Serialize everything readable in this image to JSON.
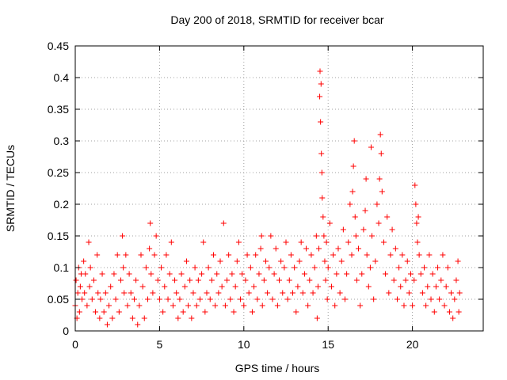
{
  "chart_data": {
    "type": "scatter",
    "title": "Day 200 of 2018, SRMTID for receiver bcar",
    "xlabel": "GPS time / hours",
    "ylabel": "SRMTID / TECUs",
    "xlim": [
      0,
      24.2
    ],
    "ylim": [
      0,
      0.45
    ],
    "x_ticks": [
      0,
      5,
      10,
      15,
      20
    ],
    "x_tick_labels": [
      "0",
      "5",
      "10",
      "15",
      "20"
    ],
    "y_ticks": [
      0,
      0.05,
      0.1,
      0.15,
      0.2,
      0.25,
      0.3,
      0.35,
      0.4,
      0.45
    ],
    "y_tick_labels": [
      "0",
      "0.05",
      "0.1",
      "0.15",
      "0.2",
      "0.25",
      "0.3",
      "0.35",
      "0.4",
      "0.45"
    ],
    "grid": true,
    "marker": "+",
    "series": [
      {
        "name": "SRMTID",
        "color": "#ff0000",
        "points": [
          [
            0.0,
            0.04
          ],
          [
            0.05,
            0.08
          ],
          [
            0.1,
            0.02
          ],
          [
            0.15,
            0.06
          ],
          [
            0.2,
            0.1
          ],
          [
            0.25,
            0.03
          ],
          [
            0.3,
            0.07
          ],
          [
            0.35,
            0.09
          ],
          [
            0.4,
            0.05
          ],
          [
            0.5,
            0.11
          ],
          [
            0.55,
            0.06
          ],
          [
            0.6,
            0.09
          ],
          [
            0.7,
            0.04
          ],
          [
            0.8,
            0.14
          ],
          [
            0.85,
            0.07
          ],
          [
            0.9,
            0.1
          ],
          [
            1.0,
            0.05
          ],
          [
            1.1,
            0.08
          ],
          [
            1.2,
            0.03
          ],
          [
            1.3,
            0.12
          ],
          [
            1.35,
            0.06
          ],
          [
            1.45,
            0.02
          ],
          [
            1.5,
            0.05
          ],
          [
            1.6,
            0.09
          ],
          [
            1.7,
            0.03
          ],
          [
            1.8,
            0.06
          ],
          [
            1.9,
            0.01
          ],
          [
            2.0,
            0.04
          ],
          [
            2.1,
            0.07
          ],
          [
            2.2,
            0.02
          ],
          [
            2.3,
            0.09
          ],
          [
            2.4,
            0.05
          ],
          [
            2.5,
            0.12
          ],
          [
            2.6,
            0.03
          ],
          [
            2.7,
            0.08
          ],
          [
            2.8,
            0.15
          ],
          [
            2.85,
            0.1
          ],
          [
            2.9,
            0.06
          ],
          [
            3.0,
            0.12
          ],
          [
            3.1,
            0.04
          ],
          [
            3.2,
            0.09
          ],
          [
            3.3,
            0.06
          ],
          [
            3.4,
            0.02
          ],
          [
            3.5,
            0.05
          ],
          [
            3.6,
            0.08
          ],
          [
            3.7,
            0.01
          ],
          [
            3.8,
            0.04
          ],
          [
            3.9,
            0.12
          ],
          [
            4.0,
            0.07
          ],
          [
            4.1,
            0.02
          ],
          [
            4.2,
            0.1
          ],
          [
            4.3,
            0.05
          ],
          [
            4.4,
            0.13
          ],
          [
            4.45,
            0.17
          ],
          [
            4.5,
            0.09
          ],
          [
            4.6,
            0.06
          ],
          [
            4.7,
            0.12
          ],
          [
            4.8,
            0.15
          ],
          [
            4.9,
            0.08
          ],
          [
            5.0,
            0.05
          ],
          [
            5.1,
            0.1
          ],
          [
            5.2,
            0.03
          ],
          [
            5.3,
            0.07
          ],
          [
            5.4,
            0.12
          ],
          [
            5.5,
            0.05
          ],
          [
            5.6,
            0.09
          ],
          [
            5.7,
            0.14
          ],
          [
            5.8,
            0.04
          ],
          [
            5.9,
            0.08
          ],
          [
            6.0,
            0.06
          ],
          [
            6.1,
            0.02
          ],
          [
            6.2,
            0.05
          ],
          [
            6.3,
            0.09
          ],
          [
            6.4,
            0.03
          ],
          [
            6.5,
            0.07
          ],
          [
            6.6,
            0.11
          ],
          [
            6.7,
            0.04
          ],
          [
            6.8,
            0.08
          ],
          [
            6.9,
            0.02
          ],
          [
            7.0,
            0.06
          ],
          [
            7.1,
            0.1
          ],
          [
            7.2,
            0.04
          ],
          [
            7.3,
            0.08
          ],
          [
            7.4,
            0.05
          ],
          [
            7.5,
            0.09
          ],
          [
            7.6,
            0.14
          ],
          [
            7.7,
            0.03
          ],
          [
            7.8,
            0.06
          ],
          [
            7.9,
            0.1
          ],
          [
            8.0,
            0.05
          ],
          [
            8.1,
            0.08
          ],
          [
            8.2,
            0.12
          ],
          [
            8.3,
            0.04
          ],
          [
            8.4,
            0.09
          ],
          [
            8.5,
            0.06
          ],
          [
            8.6,
            0.11
          ],
          [
            8.7,
            0.07
          ],
          [
            8.8,
            0.17
          ],
          [
            8.9,
            0.04
          ],
          [
            9.0,
            0.08
          ],
          [
            9.1,
            0.12
          ],
          [
            9.2,
            0.05
          ],
          [
            9.3,
            0.09
          ],
          [
            9.4,
            0.03
          ],
          [
            9.5,
            0.07
          ],
          [
            9.6,
            0.11
          ],
          [
            9.7,
            0.14
          ],
          [
            9.8,
            0.05
          ],
          [
            9.9,
            0.09
          ],
          [
            10.0,
            0.04
          ],
          [
            10.1,
            0.08
          ],
          [
            10.2,
            0.12
          ],
          [
            10.3,
            0.06
          ],
          [
            10.4,
            0.1
          ],
          [
            10.5,
            0.03
          ],
          [
            10.6,
            0.07
          ],
          [
            10.7,
            0.12
          ],
          [
            10.8,
            0.05
          ],
          [
            10.9,
            0.09
          ],
          [
            11.0,
            0.13
          ],
          [
            11.05,
            0.15
          ],
          [
            11.1,
            0.04
          ],
          [
            11.2,
            0.08
          ],
          [
            11.3,
            0.11
          ],
          [
            11.4,
            0.06
          ],
          [
            11.5,
            0.1
          ],
          [
            11.6,
            0.15
          ],
          [
            11.7,
            0.05
          ],
          [
            11.8,
            0.09
          ],
          [
            11.9,
            0.13
          ],
          [
            12.0,
            0.04
          ],
          [
            12.1,
            0.08
          ],
          [
            12.2,
            0.11
          ],
          [
            12.3,
            0.06
          ],
          [
            12.4,
            0.1
          ],
          [
            12.5,
            0.14
          ],
          [
            12.6,
            0.05
          ],
          [
            12.7,
            0.08
          ],
          [
            12.8,
            0.12
          ],
          [
            12.9,
            0.06
          ],
          [
            13.0,
            0.1
          ],
          [
            13.1,
            0.03
          ],
          [
            13.2,
            0.07
          ],
          [
            13.3,
            0.11
          ],
          [
            13.4,
            0.14
          ],
          [
            13.5,
            0.06
          ],
          [
            13.6,
            0.09
          ],
          [
            13.7,
            0.13
          ],
          [
            13.8,
            0.04
          ],
          [
            13.9,
            0.08
          ],
          [
            14.0,
            0.12
          ],
          [
            14.1,
            0.06
          ],
          [
            14.2,
            0.1
          ],
          [
            14.3,
            0.15
          ],
          [
            14.35,
            0.02
          ],
          [
            14.4,
            0.07
          ],
          [
            14.45,
            0.13
          ],
          [
            14.5,
            0.37
          ],
          [
            14.52,
            0.41
          ],
          [
            14.55,
            0.33
          ],
          [
            14.58,
            0.39
          ],
          [
            14.6,
            0.28
          ],
          [
            14.63,
            0.25
          ],
          [
            14.65,
            0.21
          ],
          [
            14.7,
            0.18
          ],
          [
            14.75,
            0.15
          ],
          [
            14.8,
            0.11
          ],
          [
            14.85,
            0.08
          ],
          [
            14.9,
            0.14
          ],
          [
            14.95,
            0.05
          ],
          [
            15.0,
            0.1
          ],
          [
            15.1,
            0.17
          ],
          [
            15.2,
            0.07
          ],
          [
            15.3,
            0.12
          ],
          [
            15.4,
            0.04
          ],
          [
            15.5,
            0.09
          ],
          [
            15.6,
            0.13
          ],
          [
            15.7,
            0.06
          ],
          [
            15.8,
            0.11
          ],
          [
            15.9,
            0.16
          ],
          [
            16.0,
            0.05
          ],
          [
            16.1,
            0.09
          ],
          [
            16.2,
            0.14
          ],
          [
            16.3,
            0.2
          ],
          [
            16.4,
            0.12
          ],
          [
            16.45,
            0.22
          ],
          [
            16.5,
            0.26
          ],
          [
            16.55,
            0.3
          ],
          [
            16.6,
            0.18
          ],
          [
            16.65,
            0.15
          ],
          [
            16.7,
            0.08
          ],
          [
            16.8,
            0.13
          ],
          [
            16.9,
            0.04
          ],
          [
            17.0,
            0.09
          ],
          [
            17.1,
            0.16
          ],
          [
            17.2,
            0.19
          ],
          [
            17.25,
            0.24
          ],
          [
            17.3,
            0.12
          ],
          [
            17.4,
            0.07
          ],
          [
            17.5,
            0.1
          ],
          [
            17.55,
            0.29
          ],
          [
            17.6,
            0.15
          ],
          [
            17.7,
            0.05
          ],
          [
            17.8,
            0.11
          ],
          [
            17.9,
            0.2
          ],
          [
            18.0,
            0.17
          ],
          [
            18.05,
            0.24
          ],
          [
            18.1,
            0.31
          ],
          [
            18.15,
            0.28
          ],
          [
            18.2,
            0.22
          ],
          [
            18.3,
            0.14
          ],
          [
            18.4,
            0.09
          ],
          [
            18.5,
            0.18
          ],
          [
            18.6,
            0.06
          ],
          [
            18.7,
            0.12
          ],
          [
            18.8,
            0.16
          ],
          [
            18.9,
            0.08
          ],
          [
            19.0,
            0.13
          ],
          [
            19.1,
            0.05
          ],
          [
            19.2,
            0.1
          ],
          [
            19.3,
            0.07
          ],
          [
            19.4,
            0.12
          ],
          [
            19.5,
            0.04
          ],
          [
            19.6,
            0.08
          ],
          [
            19.7,
            0.11
          ],
          [
            19.8,
            0.06
          ],
          [
            19.9,
            0.09
          ],
          [
            20.0,
            0.04
          ],
          [
            20.1,
            0.08
          ],
          [
            20.15,
            0.23
          ],
          [
            20.2,
            0.2
          ],
          [
            20.25,
            0.17
          ],
          [
            20.3,
            0.14
          ],
          [
            20.35,
            0.18
          ],
          [
            20.4,
            0.12
          ],
          [
            20.5,
            0.09
          ],
          [
            20.6,
            0.06
          ],
          [
            20.7,
            0.1
          ],
          [
            20.8,
            0.04
          ],
          [
            20.9,
            0.07
          ],
          [
            21.0,
            0.12
          ],
          [
            21.1,
            0.05
          ],
          [
            21.2,
            0.09
          ],
          [
            21.3,
            0.03
          ],
          [
            21.4,
            0.07
          ],
          [
            21.5,
            0.1
          ],
          [
            21.6,
            0.05
          ],
          [
            21.7,
            0.08
          ],
          [
            21.8,
            0.12
          ],
          [
            21.9,
            0.04
          ],
          [
            22.0,
            0.07
          ],
          [
            22.1,
            0.1
          ],
          [
            22.2,
            0.03
          ],
          [
            22.3,
            0.06
          ],
          [
            22.4,
            0.02
          ],
          [
            22.5,
            0.05
          ],
          [
            22.6,
            0.08
          ],
          [
            22.7,
            0.11
          ],
          [
            22.75,
            0.03
          ],
          [
            22.8,
            0.06
          ]
        ]
      }
    ]
  }
}
